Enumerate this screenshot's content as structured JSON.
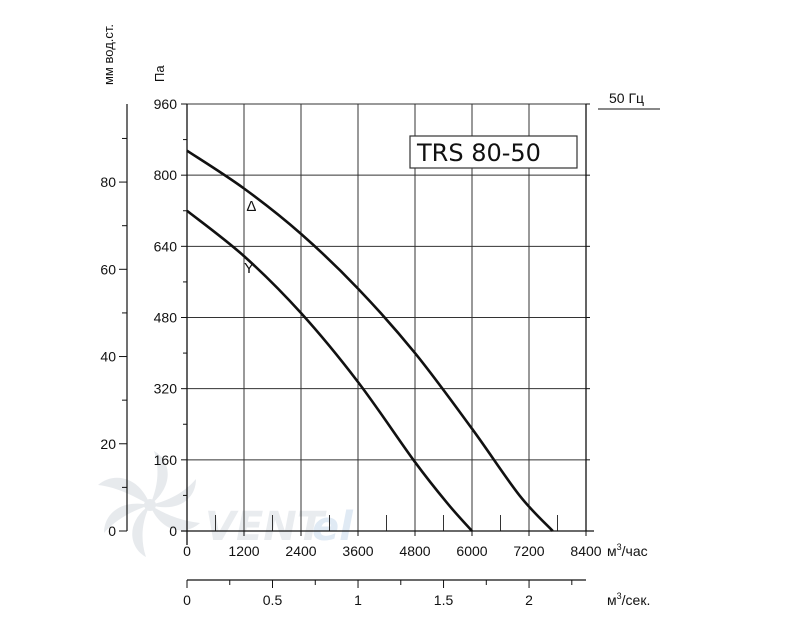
{
  "chart_data": {
    "type": "line",
    "model_label": "TRS 80-50",
    "frequency_label": "50 Гц",
    "x_axis": {
      "unit": "м³/час",
      "unit_base": "м",
      "unit_sup": "3",
      "unit_tail": "/час",
      "range": [
        0,
        8400
      ],
      "ticks": [
        "0",
        "1200",
        "2400",
        "3600",
        "4800",
        "6000",
        "7200",
        "8400"
      ]
    },
    "x2_axis": {
      "unit": "м³/сек.",
      "unit_base": "м",
      "unit_sup": "3",
      "unit_tail": "/сек.",
      "range": [
        0,
        2.333
      ],
      "ticks": [
        "0",
        "0.5",
        "1",
        "1.5",
        "2"
      ]
    },
    "y_axis": {
      "unit": "Па",
      "range": [
        0,
        960
      ],
      "ticks": [
        "0",
        "160",
        "320",
        "480",
        "640",
        "800",
        "960"
      ]
    },
    "y2_axis": {
      "unit": "мм вод.ст.",
      "range": [
        0,
        97.9
      ],
      "ticks": [
        "0",
        "20",
        "40",
        "60",
        "80"
      ]
    },
    "grid": true,
    "series": [
      {
        "name": "Δ",
        "x": [
          0,
          1200,
          2400,
          3600,
          4800,
          6000,
          7000,
          7700
        ],
        "y": [
          855,
          770,
          668,
          545,
          400,
          230,
          80,
          0
        ]
      },
      {
        "name": "Y",
        "x": [
          0,
          1200,
          2400,
          3600,
          4800,
          5500,
          6000
        ],
        "y": [
          720,
          618,
          490,
          335,
          155,
          60,
          0
        ]
      }
    ]
  }
}
